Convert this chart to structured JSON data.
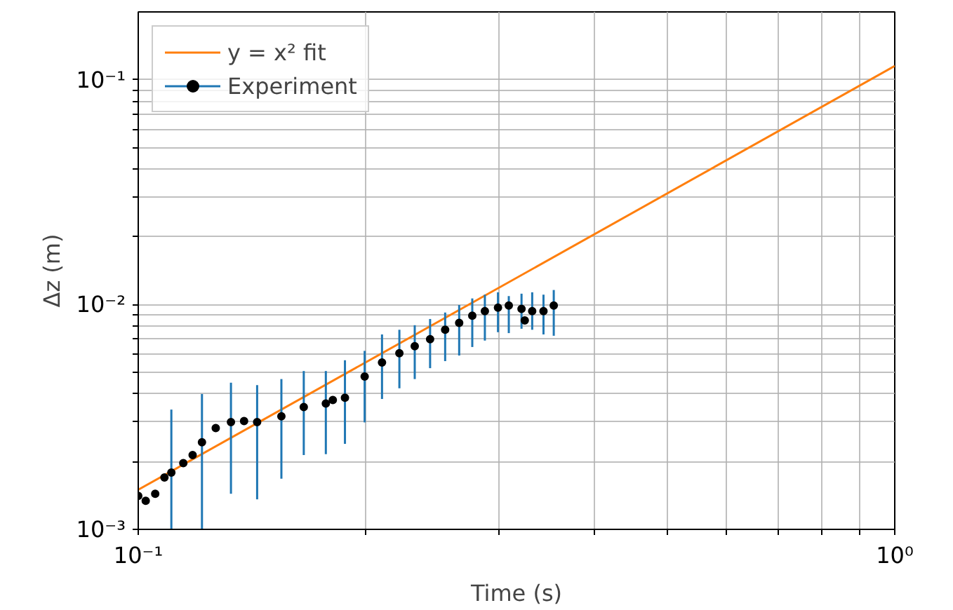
{
  "chart_data": {
    "type": "scatter",
    "xlabel": "Time (s)",
    "ylabel": "Δz (m)",
    "log": "xy",
    "grid": true,
    "legend": "top left",
    "marker": "circle",
    "xlim": [
      0.1,
      1
    ],
    "ylim": [
      0.001,
      0.2
    ],
    "xticks": [
      {
        "value": 0.1,
        "label": "10⁻¹"
      },
      {
        "value": 0.2,
        "label": null
      },
      {
        "value": 0.3,
        "label": null
      },
      {
        "value": 0.4,
        "label": null
      },
      {
        "value": 0.5,
        "label": null
      },
      {
        "value": 0.6,
        "label": null
      },
      {
        "value": 0.7,
        "label": null
      },
      {
        "value": 0.8,
        "label": null
      },
      {
        "value": 0.9,
        "label": null
      },
      {
        "value": 1,
        "label": "10⁰"
      }
    ],
    "yticks": [
      {
        "value": 0.001,
        "label": "10⁻³"
      },
      {
        "value": 0.002,
        "label": null
      },
      {
        "value": 0.003,
        "label": null
      },
      {
        "value": 0.004,
        "label": null
      },
      {
        "value": 0.005,
        "label": null
      },
      {
        "value": 0.006,
        "label": null
      },
      {
        "value": 0.007,
        "label": null
      },
      {
        "value": 0.008,
        "label": null
      },
      {
        "value": 0.009,
        "label": null
      },
      {
        "value": 0.01,
        "label": "10⁻²"
      },
      {
        "value": 0.02,
        "label": null
      },
      {
        "value": 0.03,
        "label": null
      },
      {
        "value": 0.04,
        "label": null
      },
      {
        "value": 0.05,
        "label": null
      },
      {
        "value": 0.06,
        "label": null
      },
      {
        "value": 0.07,
        "label": null
      },
      {
        "value": 0.08,
        "label": null
      },
      {
        "value": 0.09,
        "label": null
      },
      {
        "value": 0.1,
        "label": "10⁻¹"
      }
    ],
    "series": [
      {
        "name": "y = x² fit",
        "type": "line",
        "color": "#ff7f0e",
        "marker": "none",
        "x": [
          0.1,
          1
        ],
        "values": [
          0.0015,
          0.115
        ]
      },
      {
        "name": "Experiment",
        "color": "#1f77b4",
        "colors": [
          "#000000",
          "#000000",
          "#000000",
          "#000000",
          "#000000",
          "#000000",
          "#000000",
          "#000000",
          "#000000",
          "#000000",
          "#000000",
          "#000000",
          "#000000",
          "#000000",
          "#000000",
          "#000000",
          "#000000",
          "#000000",
          "#000000",
          "#000000",
          "#000000",
          "#000000",
          "#000000",
          "#000000",
          "#000000",
          "#000000",
          "#000000",
          "#000000",
          "#000000",
          "#000000",
          "#000000",
          "#000000",
          "#000000"
        ],
        "x": [
          0.1,
          0.1023,
          0.1053,
          0.1083,
          0.1106,
          0.1147,
          0.118,
          0.1214,
          0.1266,
          0.1326,
          0.138,
          0.1436,
          0.1546,
          0.1655,
          0.177,
          0.1808,
          0.1876,
          0.1992,
          0.21,
          0.2214,
          0.232,
          0.2431,
          0.2545,
          0.2656,
          0.2764,
          0.2872,
          0.2989,
          0.3089,
          0.3211,
          0.3243,
          0.3317,
          0.3433,
          0.3542
        ],
        "values": [
          0.00141,
          0.00134,
          0.00144,
          0.0017,
          0.00179,
          0.00197,
          0.00214,
          0.00244,
          0.00282,
          0.003,
          0.00303,
          0.003,
          0.00318,
          0.0035,
          0.00363,
          0.00376,
          0.00385,
          0.00478,
          0.00552,
          0.00607,
          0.00652,
          0.00701,
          0.00772,
          0.00829,
          0.00891,
          0.00935,
          0.00968,
          0.0099,
          0.00957,
          0.00849,
          0.00935,
          0.00935,
          0.0099
        ],
        "errors": [
          null,
          null,
          null,
          null,
          [
            0.001,
            0.00341
          ],
          null,
          null,
          [
            0.001,
            0.004
          ],
          null,
          [
            0.00144,
            0.00449
          ],
          null,
          [
            0.00136,
            0.00438
          ],
          [
            0.00168,
            0.00466
          ],
          [
            0.00214,
            0.00506
          ],
          [
            0.00216,
            0.00506
          ],
          null,
          [
            0.0024,
            0.00565
          ],
          [
            0.00299,
            0.00622
          ],
          [
            0.0038,
            0.00736
          ],
          [
            0.00424,
            0.00772
          ],
          [
            0.00466,
            0.00809
          ],
          [
            0.00521,
            0.00862
          ],
          [
            0.0056,
            0.00921
          ],
          [
            0.00593,
            0.00995
          ],
          [
            0.00647,
            0.01064
          ],
          [
            0.00691,
            0.01106
          ],
          [
            0.00753,
            0.01133
          ],
          [
            0.00746,
            0.0109
          ],
          [
            0.0078,
            0.01117
          ],
          null,
          [
            0.00772,
            0.01133
          ],
          [
            0.00736,
            0.01106
          ],
          [
            0.00726,
            0.0116
          ]
        ]
      }
    ]
  }
}
